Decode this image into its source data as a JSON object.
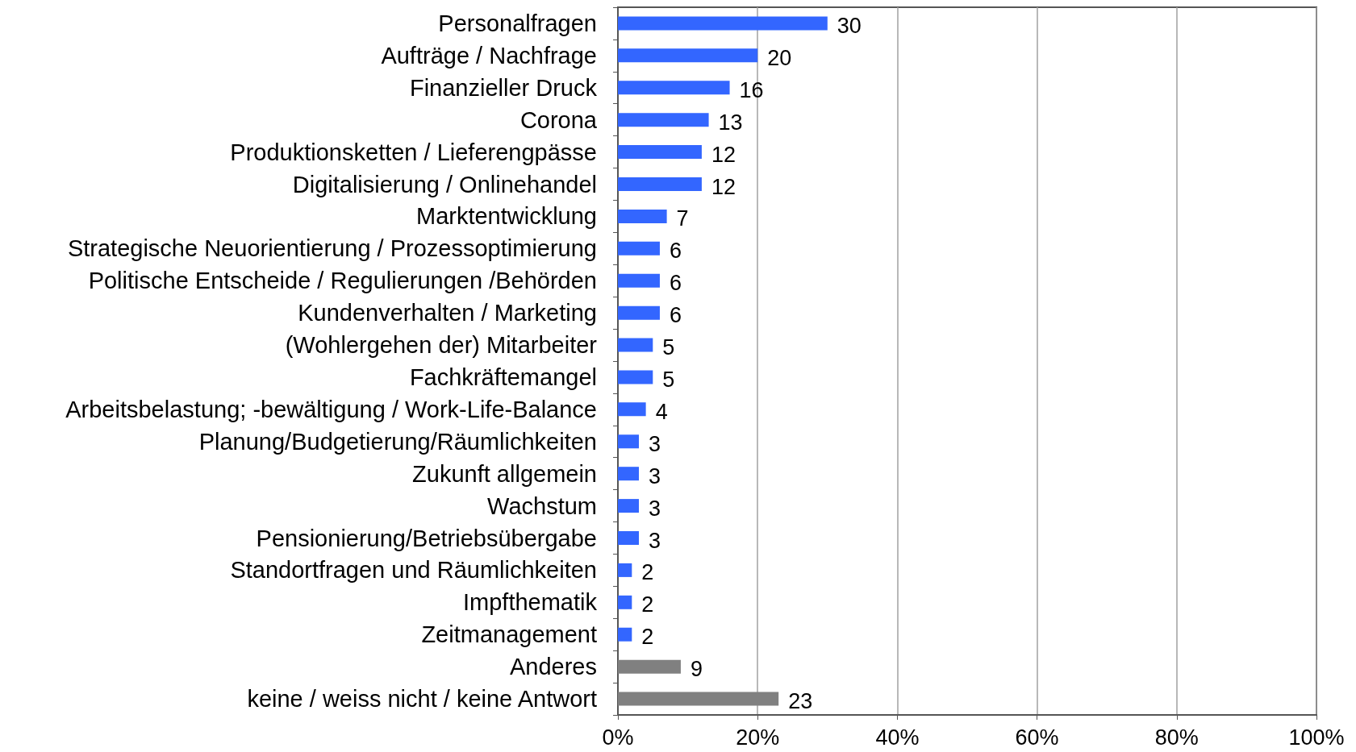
{
  "chart_data": {
    "type": "bar",
    "orientation": "horizontal",
    "categories": [
      "Personalfragen",
      "Aufträge / Nachfrage",
      "Finanzieller Druck",
      "Corona",
      "Produktionsketten / Lieferengpässe",
      "Digitalisierung / Onlinehandel",
      "Marktentwicklung",
      "Strategische Neuorientierung / Prozessoptimierung",
      "Politische Entscheide / Regulierungen /Behörden",
      "Kundenverhalten / Marketing",
      "(Wohlergehen der) Mitarbeiter",
      "Fachkräftemangel",
      "Arbeitsbelastung; -bewältigung / Work-Life-Balance",
      "Planung/Budgetierung/Räumlichkeiten",
      "Zukunft allgemein",
      "Wachstum",
      "Pensionierung/Betriebsübergabe",
      "Standortfragen und Räumlichkeiten",
      "Impfthematik",
      "Zeitmanagement",
      "Anderes",
      "keine / weiss nicht / keine Antwort"
    ],
    "values": [
      30,
      20,
      16,
      13,
      12,
      12,
      7,
      6,
      6,
      6,
      5,
      5,
      4,
      3,
      3,
      3,
      3,
      2,
      2,
      2,
      9,
      23
    ],
    "colors": [
      "#3366ff",
      "#3366ff",
      "#3366ff",
      "#3366ff",
      "#3366ff",
      "#3366ff",
      "#3366ff",
      "#3366ff",
      "#3366ff",
      "#3366ff",
      "#3366ff",
      "#3366ff",
      "#3366ff",
      "#3366ff",
      "#3366ff",
      "#3366ff",
      "#3366ff",
      "#3366ff",
      "#3366ff",
      "#3366ff",
      "#808080",
      "#808080"
    ],
    "xlim": [
      0,
      100
    ],
    "xticks": [
      {
        "value": 0,
        "label": "0%"
      },
      {
        "value": 20,
        "label": "20%"
      },
      {
        "value": 40,
        "label": "40%"
      },
      {
        "value": 60,
        "label": "60%"
      },
      {
        "value": 80,
        "label": "80%"
      },
      {
        "value": 100,
        "label": "100%"
      }
    ],
    "grid": "x",
    "data_labels": true
  }
}
